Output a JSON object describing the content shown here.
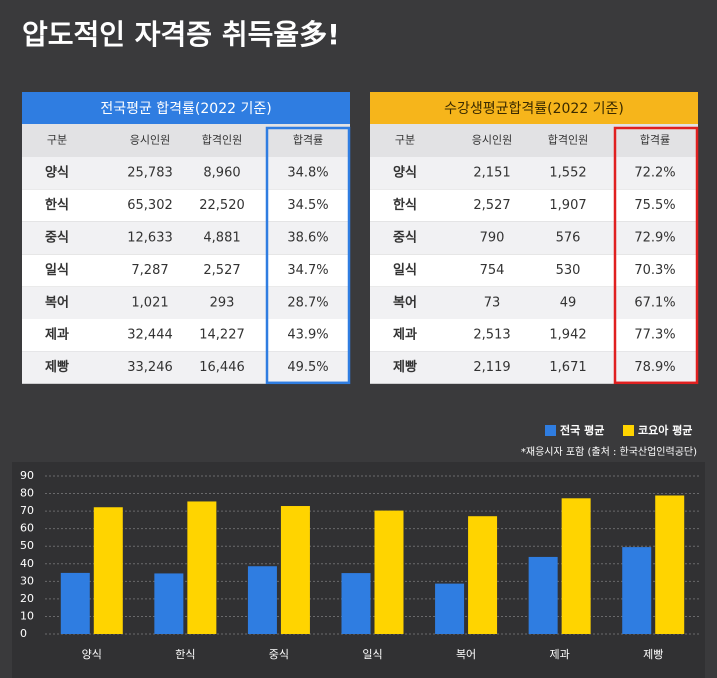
{
  "title": "압도적인 자격증 취득율多!",
  "tables": [
    {
      "title": "전국평균 합격률(2022 기준)",
      "columns": [
        "구분",
        "응시인원",
        "합격인원",
        "합격률"
      ],
      "rows": [
        [
          "양식",
          "25,783",
          "8,960",
          "34.8%"
        ],
        [
          "한식",
          "65,302",
          "22,520",
          "34.5%"
        ],
        [
          "중식",
          "12,633",
          "4,881",
          "38.6%"
        ],
        [
          "일식",
          "7,287",
          "2,527",
          "34.7%"
        ],
        [
          "복어",
          "1,021",
          "293",
          "28.7%"
        ],
        [
          "제과",
          "32,444",
          "14,227",
          "43.9%"
        ],
        [
          "제빵",
          "33,246",
          "16,446",
          "49.5%"
        ]
      ]
    },
    {
      "title": "수강생평균합격률(2022 기준)",
      "columns": [
        "구분",
        "응시인원",
        "합격인원",
        "합격률"
      ],
      "rows": [
        [
          "양식",
          "2,151",
          "1,552",
          "72.2%"
        ],
        [
          "한식",
          "2,527",
          "1,907",
          "75.5%"
        ],
        [
          "중식",
          "790",
          "576",
          "72.9%"
        ],
        [
          "일식",
          "754",
          "530",
          "70.3%"
        ],
        [
          "복어",
          "73",
          "49",
          "67.1%"
        ],
        [
          "제과",
          "2,513",
          "1,942",
          "77.3%"
        ],
        [
          "제빵",
          "2,119",
          "1,671",
          "78.9%"
        ]
      ]
    }
  ],
  "chart_data": {
    "type": "bar",
    "note": "*재응시자 포함 (출처 : 한국산업인력공단)",
    "categories": [
      "양식",
      "한식",
      "중식",
      "일식",
      "복어",
      "제과",
      "제빵"
    ],
    "series": [
      {
        "name": "전국 평균",
        "color": "#2f7de1",
        "values": [
          34.8,
          34.5,
          38.6,
          34.7,
          28.7,
          43.9,
          49.5
        ]
      },
      {
        "name": "코요아 평균",
        "color": "#ffd400",
        "values": [
          72.2,
          75.5,
          72.9,
          70.3,
          67.1,
          77.3,
          78.9
        ]
      }
    ],
    "ylim": [
      0,
      90
    ],
    "yticks": [
      0,
      10,
      20,
      30,
      40,
      50,
      60,
      70,
      80,
      90
    ],
    "grid": true
  }
}
